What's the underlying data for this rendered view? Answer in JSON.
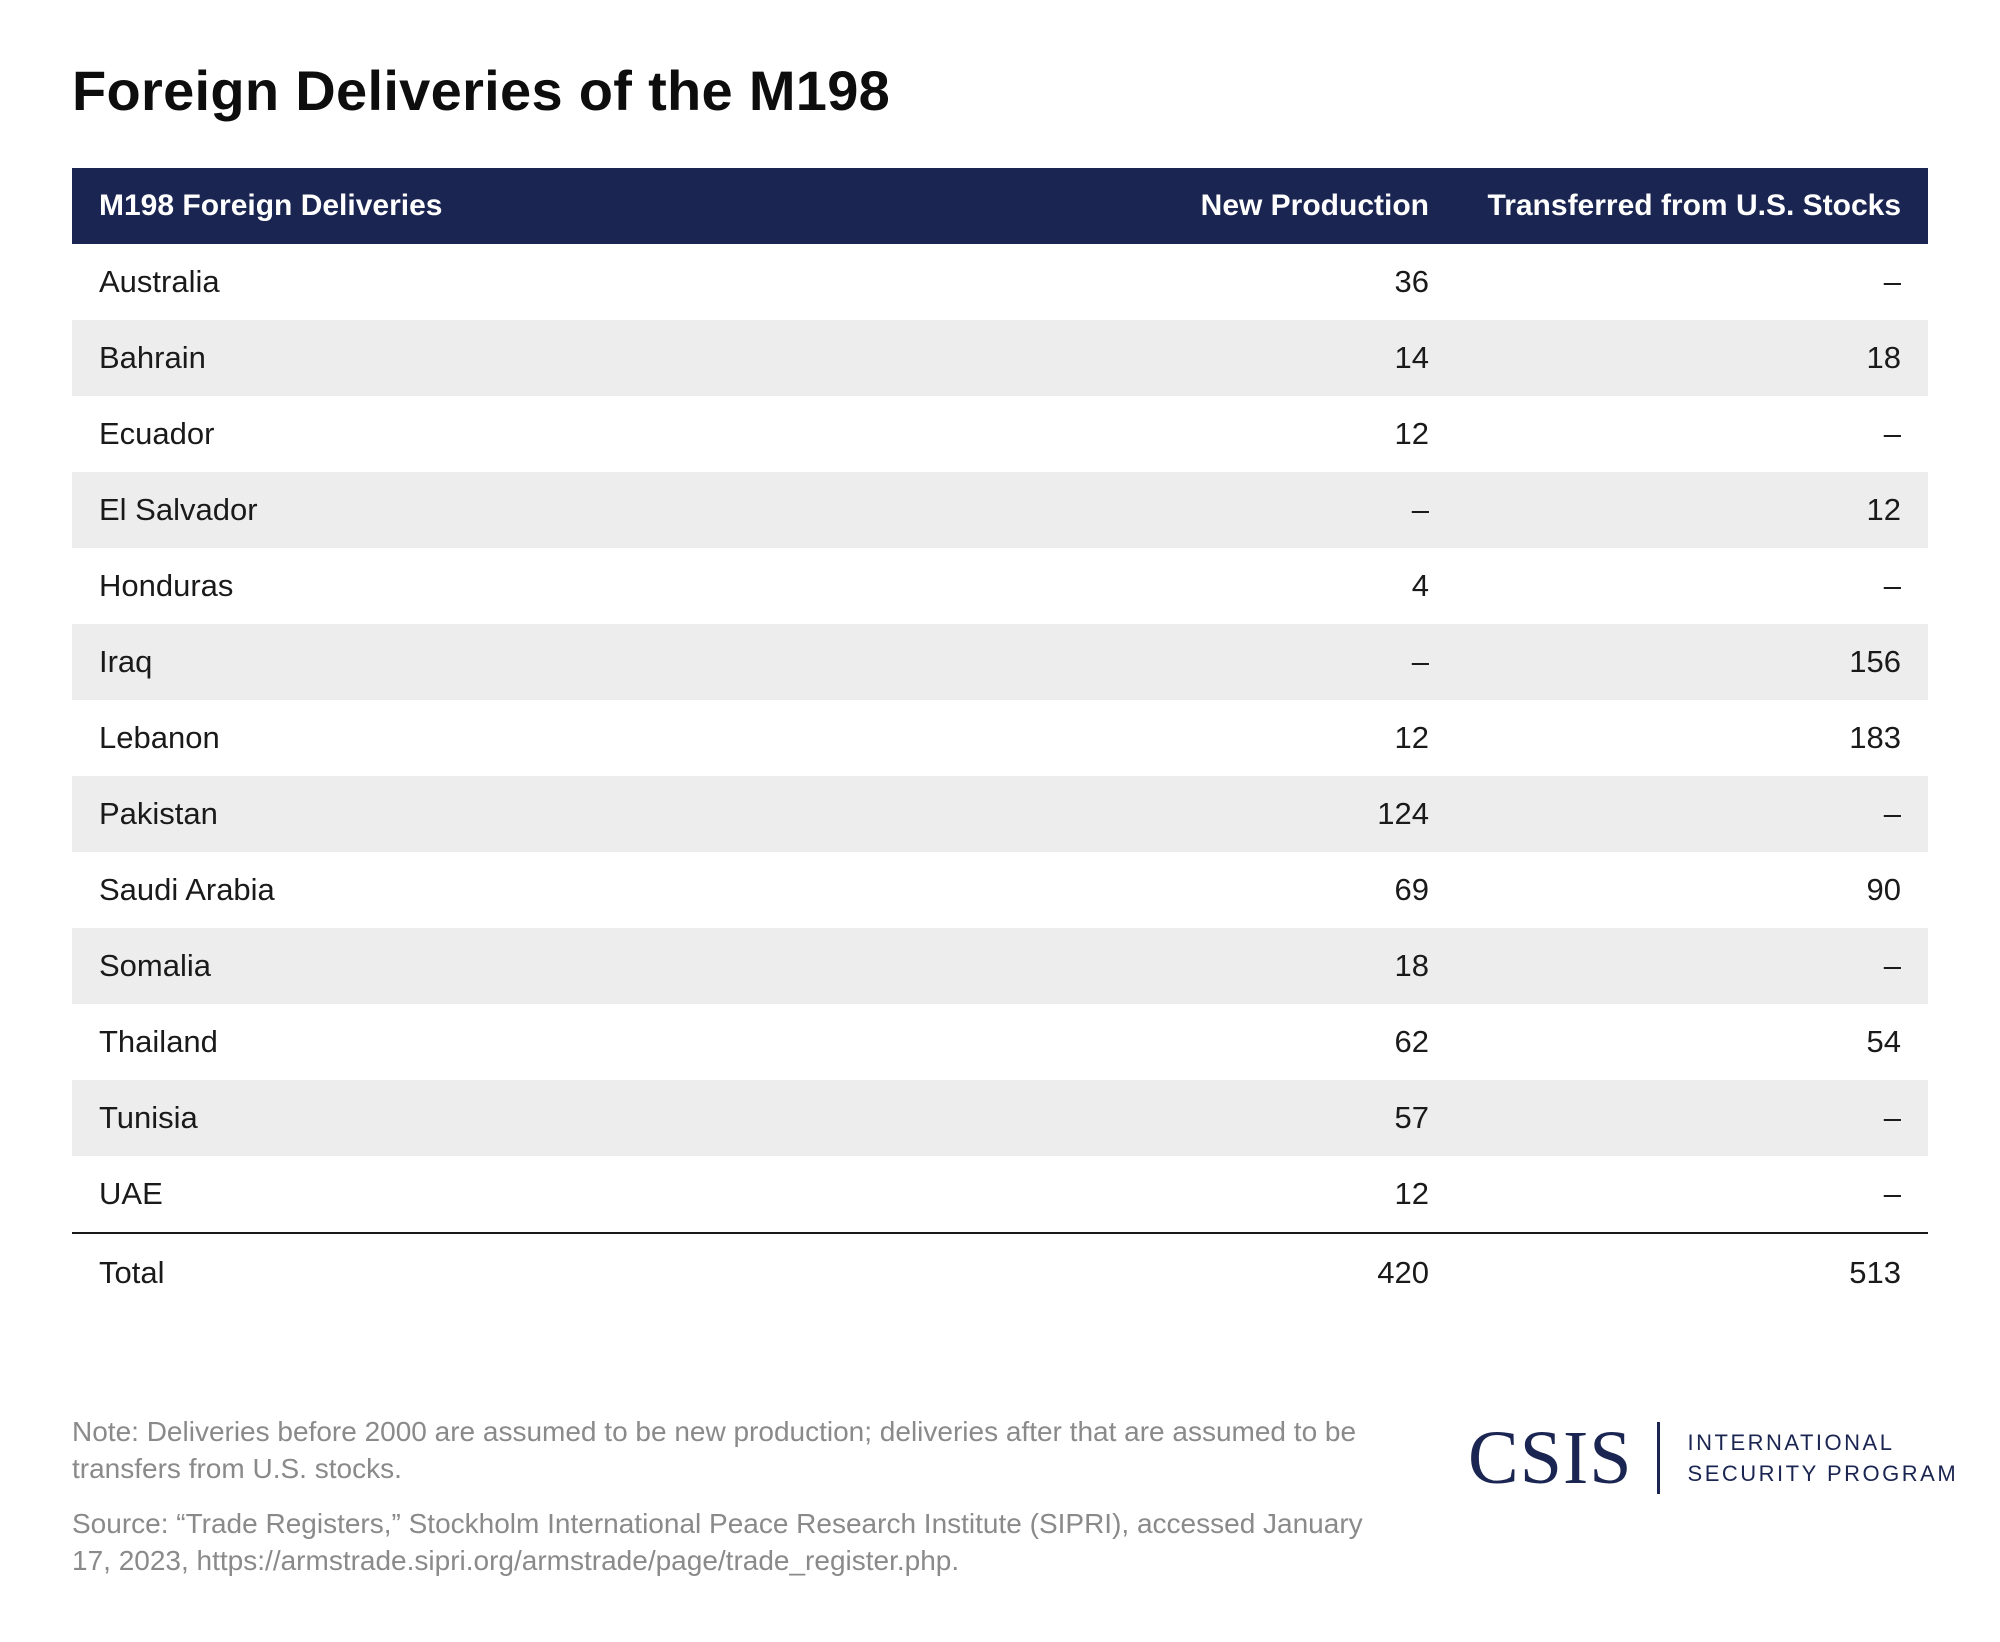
{
  "chart_data": {
    "type": "table",
    "title": "Foreign Deliveries of the M198",
    "columns": [
      "M198 Foreign Deliveries",
      "New Production",
      "Transferred from U.S. Stocks"
    ],
    "rows": [
      {
        "country": "Australia",
        "new_production": "36",
        "transferred": "–"
      },
      {
        "country": "Bahrain",
        "new_production": "14",
        "transferred": "18"
      },
      {
        "country": "Ecuador",
        "new_production": "12",
        "transferred": "–"
      },
      {
        "country": "El Salvador",
        "new_production": "–",
        "transferred": "12"
      },
      {
        "country": "Honduras",
        "new_production": "4",
        "transferred": "–"
      },
      {
        "country": "Iraq",
        "new_production": "–",
        "transferred": "156"
      },
      {
        "country": "Lebanon",
        "new_production": "12",
        "transferred": "183"
      },
      {
        "country": "Pakistan",
        "new_production": "124",
        "transferred": "–"
      },
      {
        "country": "Saudi Arabia",
        "new_production": "69",
        "transferred": "90"
      },
      {
        "country": "Somalia",
        "new_production": "18",
        "transferred": "–"
      },
      {
        "country": "Thailand",
        "new_production": "62",
        "transferred": "54"
      },
      {
        "country": "Tunisia",
        "new_production": "57",
        "transferred": "–"
      },
      {
        "country": "UAE",
        "new_production": "12",
        "transferred": "–"
      }
    ],
    "total": {
      "label": "Total",
      "new_production": "420",
      "transferred": "513"
    }
  },
  "footer": {
    "note": "Note: Deliveries before 2000 are assumed to be new production; deliveries after that are assumed to be transfers from U.S. stocks.",
    "source": "Source: “Trade Registers,” Stockholm International Peace Research Institute (SIPRI), accessed January 17, 2023, https://armstrade.sipri.org/armstrade/page/trade_register.php."
  },
  "logo": {
    "mark": "CSIS",
    "line1": "INTERNATIONAL",
    "line2": "SECURITY PROGRAM"
  },
  "colors": {
    "header_bg": "#1b2551",
    "alt_row_bg": "#ededed",
    "brand": "#1b2551"
  }
}
